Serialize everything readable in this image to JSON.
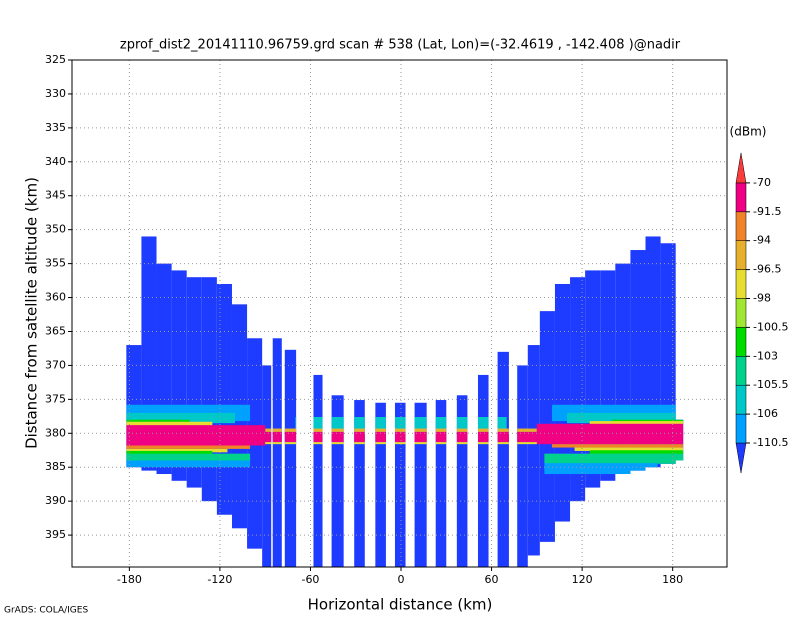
{
  "chart_data": {
    "type": "heatmap",
    "title": "zprof_dist2_20141110.96759.grd  scan # 538  (Lat, Lon)=(-32.4619 , -142.408 )@nadir",
    "x_label": "Horizontal distance (km)",
    "y_label": "Distance from satellite altitude (km)",
    "footer": "GrADS: COLA/IGES",
    "xlim": [
      -218,
      216
    ],
    "xticks": [
      -180,
      -120,
      -60,
      0,
      60,
      120,
      180
    ],
    "ylim": [
      399.7,
      325
    ],
    "yticks": [
      325,
      330,
      335,
      340,
      345,
      350,
      355,
      360,
      365,
      370,
      375,
      380,
      385,
      390,
      395
    ],
    "grid": true,
    "colorbar": {
      "unit": "(dBm)",
      "levels": [
        -110.5,
        -106,
        -105.5,
        -103,
        -100.5,
        -98,
        -96.5,
        -94,
        -91.5,
        -70
      ],
      "colors": [
        "#1e3cff",
        "#00a0ff",
        "#00c8c8",
        "#00d28c",
        "#00dc00",
        "#a0e632",
        "#e6dc32",
        "#e6af2d",
        "#f08228",
        "#f00082",
        "#fa3c3c"
      ]
    },
    "columns": [
      {
        "x0": -182,
        "x1": -172,
        "y0": 367,
        "y1": 385,
        "value": -112
      },
      {
        "x0": -172,
        "x1": -162,
        "y0": 351,
        "y1": 385.5,
        "value": -112
      },
      {
        "x0": -162,
        "x1": -152,
        "y0": 355,
        "y1": 386,
        "value": -112
      },
      {
        "x0": -152,
        "x1": -142,
        "y0": 356,
        "y1": 387,
        "value": -112
      },
      {
        "x0": -142,
        "x1": -132,
        "y0": 357,
        "y1": 388,
        "value": -112
      },
      {
        "x0": -132,
        "x1": -122,
        "y0": 357,
        "y1": 390,
        "value": -112
      },
      {
        "x0": -122,
        "x1": -112,
        "y0": 358,
        "y1": 392,
        "value": -112
      },
      {
        "x0": -112,
        "x1": -102,
        "y0": 361,
        "y1": 394,
        "value": -112
      },
      {
        "x0": -102,
        "x1": -92,
        "y0": 366,
        "y1": 397,
        "value": -112
      },
      {
        "x0": -92,
        "x1": -86,
        "y0": 370,
        "y1": 399.7,
        "value": -112
      },
      {
        "x0": -85,
        "x1": -79,
        "y0": 366,
        "y1": 399.7,
        "value": -112
      },
      {
        "x0": -77,
        "x1": -69.5,
        "y0": 367.7,
        "y1": 399.7,
        "value": -112
      },
      {
        "x0": -58,
        "x1": -52,
        "y0": 371.4,
        "y1": 399.7,
        "value": -112
      },
      {
        "x0": -46,
        "x1": -38,
        "y0": 374.4,
        "y1": 399.7,
        "value": -112
      },
      {
        "x0": -31,
        "x1": -24,
        "y0": 375.1,
        "y1": 399.7,
        "value": -112
      },
      {
        "x0": -17,
        "x1": -10,
        "y0": 375.5,
        "y1": 399.7,
        "value": -112
      },
      {
        "x0": -4,
        "x1": 3,
        "y0": 375.5,
        "y1": 399.7,
        "value": -112
      },
      {
        "x0": 9,
        "x1": 17,
        "y0": 375.5,
        "y1": 399.7,
        "value": -112
      },
      {
        "x0": 23,
        "x1": 30,
        "y0": 375.1,
        "y1": 399.7,
        "value": -112
      },
      {
        "x0": 37,
        "x1": 44,
        "y0": 374.4,
        "y1": 399.7,
        "value": -112
      },
      {
        "x0": 51,
        "x1": 58,
        "y0": 371.4,
        "y1": 399.7,
        "value": -112
      },
      {
        "x0": 64,
        "x1": 71.5,
        "y0": 368,
        "y1": 399.7,
        "value": -112
      },
      {
        "x0": 77,
        "x1": 84,
        "y0": 370,
        "y1": 399.7,
        "value": -112
      },
      {
        "x0": 84,
        "x1": 92,
        "y0": 367,
        "y1": 398,
        "value": -112
      },
      {
        "x0": 92,
        "x1": 102,
        "y0": 362,
        "y1": 396,
        "value": -112
      },
      {
        "x0": 102,
        "x1": 112,
        "y0": 358,
        "y1": 393,
        "value": -112
      },
      {
        "x0": 112,
        "x1": 122,
        "y0": 357,
        "y1": 390,
        "value": -112
      },
      {
        "x0": 122,
        "x1": 132,
        "y0": 356,
        "y1": 388,
        "value": -112
      },
      {
        "x0": 132,
        "x1": 142,
        "y0": 356,
        "y1": 387,
        "value": -112
      },
      {
        "x0": 142,
        "x1": 152,
        "y0": 355,
        "y1": 386,
        "value": -112
      },
      {
        "x0": 152,
        "x1": 162,
        "y0": 353,
        "y1": 385.5,
        "value": -112
      },
      {
        "x0": 162,
        "x1": 172,
        "y0": 351,
        "y1": 385,
        "value": -112
      },
      {
        "x0": 172,
        "x1": 182,
        "y0": 352,
        "y1": 384.5,
        "value": -112
      },
      {
        "x0": 182,
        "x1": 187,
        "y0": 378,
        "y1": 384,
        "value": -112
      }
    ],
    "band": [
      {
        "x0": -182,
        "x1": -100,
        "y0": 375.8,
        "y1": 378.2,
        "value": -108
      },
      {
        "x0": 100,
        "x1": 187,
        "y0": 375.8,
        "y1": 378.2,
        "value": -108
      },
      {
        "x0": -182,
        "x1": -110,
        "y0": 377,
        "y1": 378.5,
        "value": -105.7
      },
      {
        "x0": 110,
        "x1": 187,
        "y0": 377,
        "y1": 378.5,
        "value": -105.7
      },
      {
        "x0": -182,
        "x1": -140,
        "y0": 378,
        "y1": 378.7,
        "value": -102
      },
      {
        "x0": 140,
        "x1": 187,
        "y0": 378,
        "y1": 378.7,
        "value": -102
      },
      {
        "x0": -182,
        "x1": -125,
        "y0": 378.3,
        "y1": 378.9,
        "value": -97
      },
      {
        "x0": 125,
        "x1": 187,
        "y0": 378.2,
        "y1": 378.9,
        "value": -97
      },
      {
        "x0": -70,
        "x1": 70,
        "y0": 377.6,
        "y1": 379.5,
        "value": -105.7
      },
      {
        "x0": -90,
        "x1": 90,
        "y0": 379.3,
        "y1": 379.8,
        "value": -95
      },
      {
        "x0": -182,
        "x1": -90,
        "y0": 378.8,
        "y1": 381.8,
        "value": -80
      },
      {
        "x0": -90,
        "x1": 90,
        "y0": 379.8,
        "y1": 381.3,
        "value": -80
      },
      {
        "x0": 90,
        "x1": 187,
        "y0": 378.6,
        "y1": 381.6,
        "value": -80
      },
      {
        "x0": -90,
        "x1": 90,
        "y0": 381.3,
        "y1": 381.6,
        "value": -97
      },
      {
        "x0": -182,
        "x1": -100,
        "y0": 381.8,
        "y1": 382.3,
        "value": -93
      },
      {
        "x0": 100,
        "x1": 187,
        "y0": 381.6,
        "y1": 382.1,
        "value": -93
      },
      {
        "x0": -182,
        "x1": -115,
        "y0": 382.3,
        "y1": 382.8,
        "value": -97
      },
      {
        "x0": 115,
        "x1": 187,
        "y0": 382.1,
        "y1": 382.6,
        "value": -97
      },
      {
        "x0": -182,
        "x1": -125,
        "y0": 382.6,
        "y1": 383.2,
        "value": -102
      },
      {
        "x0": 125,
        "x1": 187,
        "y0": 382.5,
        "y1": 383.1,
        "value": -102
      },
      {
        "x0": -182,
        "x1": -100,
        "y0": 383,
        "y1": 384.2,
        "value": -104
      },
      {
        "x0": 95,
        "x1": 187,
        "y0": 383,
        "y1": 384.5,
        "value": -104
      },
      {
        "x0": -182,
        "x1": -100,
        "y0": 384,
        "y1": 385,
        "value": -108
      },
      {
        "x0": 95,
        "x1": 170,
        "y0": 384.4,
        "y1": 386,
        "value": -108
      }
    ]
  }
}
